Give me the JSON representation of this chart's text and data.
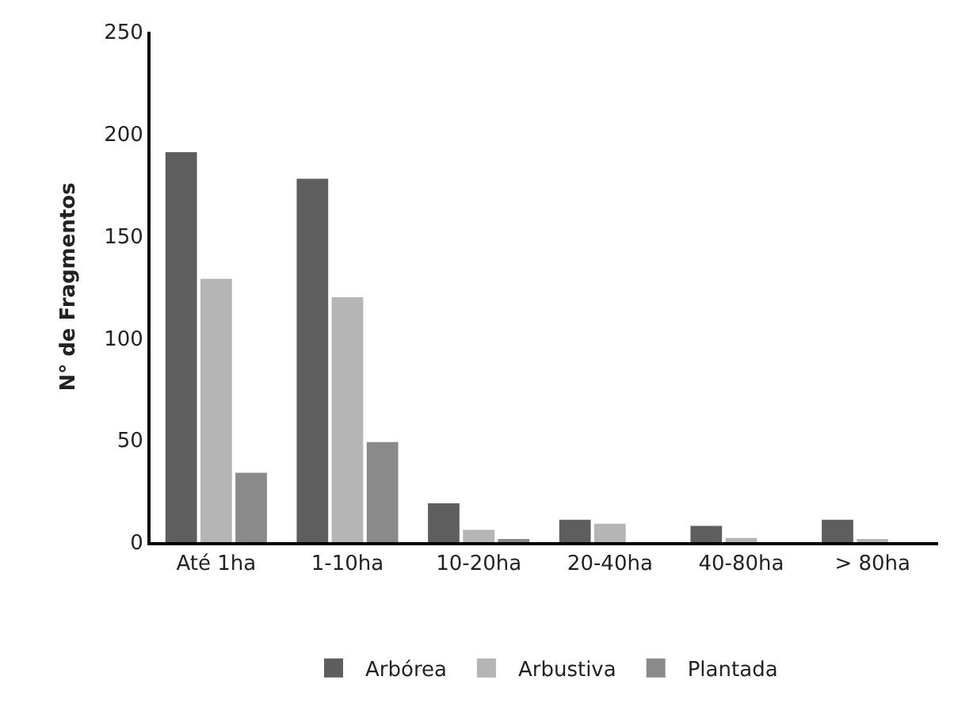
{
  "chart_data": {
    "type": "bar",
    "ylabel": "N° de Fragmentos",
    "categories": [
      "Até 1ha",
      "1-10ha",
      "10-20ha",
      "20-40ha",
      "40-80ha",
      "> 80ha"
    ],
    "series": [
      {
        "name": "Arbórea",
        "color": "#5e5e5e",
        "values": [
          191,
          178,
          19,
          11,
          8,
          11
        ]
      },
      {
        "name": "Arbustiva",
        "color": "#b5b5b5",
        "values": [
          129,
          120,
          6,
          9,
          2,
          1
        ]
      },
      {
        "name": "Plantada",
        "color": "#8a8a8a",
        "values": [
          34,
          49,
          1,
          0,
          0,
          0
        ]
      }
    ],
    "ylim": [
      0,
      250
    ],
    "yticks": [
      0,
      50,
      100,
      150,
      200,
      250
    ],
    "grid": false,
    "legend": "bottom"
  }
}
